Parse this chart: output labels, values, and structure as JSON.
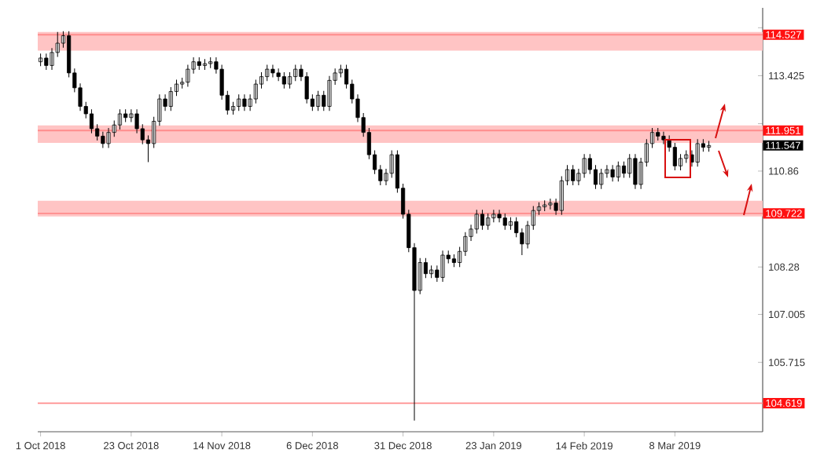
{
  "chart_data": {
    "type": "candlestick",
    "categories": [
      "1 Oct 2018",
      null,
      null,
      null,
      null,
      null,
      null,
      null,
      null,
      null,
      null,
      null,
      null,
      null,
      null,
      null,
      "23 Oct 2018",
      null,
      null,
      null,
      null,
      null,
      null,
      null,
      null,
      null,
      null,
      null,
      null,
      null,
      null,
      null,
      "14 Nov 2018",
      null,
      null,
      null,
      null,
      null,
      null,
      null,
      null,
      null,
      null,
      null,
      null,
      null,
      null,
      null,
      "6 Dec 2018",
      null,
      null,
      null,
      null,
      null,
      null,
      null,
      null,
      null,
      null,
      null,
      null,
      null,
      null,
      null,
      "31 Dec 2018",
      null,
      null,
      null,
      null,
      null,
      null,
      null,
      null,
      null,
      null,
      null,
      null,
      null,
      null,
      null,
      "23 Jan 2019",
      null,
      null,
      null,
      null,
      null,
      null,
      null,
      null,
      null,
      null,
      null,
      null,
      null,
      null,
      null,
      "14 Feb 2019",
      null,
      null,
      null,
      null,
      null,
      null,
      null,
      null,
      null,
      null,
      null,
      null,
      null,
      null,
      null,
      "8 Mar 2019",
      null,
      null,
      null,
      null,
      null,
      null,
      null,
      null,
      null,
      null,
      null,
      null,
      null,
      null,
      null
    ],
    "ohlc": [
      [
        113.8,
        114.02,
        113.68,
        113.9
      ],
      [
        113.9,
        114.02,
        113.58,
        113.7
      ],
      [
        113.7,
        114.17,
        113.58,
        114.05
      ],
      [
        114.05,
        114.6,
        113.93,
        114.3
      ],
      [
        114.3,
        114.62,
        114.18,
        114.5
      ],
      [
        114.5,
        114.62,
        113.38,
        113.5
      ],
      [
        113.5,
        113.62,
        112.98,
        113.1
      ],
      [
        113.1,
        113.22,
        112.48,
        112.6
      ],
      [
        112.6,
        112.72,
        112.28,
        112.4
      ],
      [
        112.4,
        112.52,
        111.88,
        112.0
      ],
      [
        112.0,
        112.12,
        111.68,
        111.8
      ],
      [
        111.8,
        111.92,
        111.48,
        111.6
      ],
      [
        111.6,
        112.02,
        111.48,
        111.9
      ],
      [
        111.9,
        112.22,
        111.78,
        112.1
      ],
      [
        112.1,
        112.52,
        111.98,
        112.4
      ],
      [
        112.4,
        112.52,
        112.18,
        112.3
      ],
      [
        112.3,
        112.52,
        112.18,
        112.4
      ],
      [
        112.4,
        112.52,
        111.88,
        112.0
      ],
      [
        112.0,
        112.12,
        111.58,
        111.7
      ],
      [
        111.7,
        111.82,
        111.1,
        111.6
      ],
      [
        111.6,
        112.32,
        111.48,
        112.2
      ],
      [
        112.2,
        112.92,
        112.08,
        112.8
      ],
      [
        112.8,
        112.92,
        112.48,
        112.6
      ],
      [
        112.6,
        113.12,
        112.48,
        113.0
      ],
      [
        113.0,
        113.32,
        112.88,
        113.2
      ],
      [
        113.2,
        113.37,
        113.08,
        113.25
      ],
      [
        113.25,
        113.72,
        113.13,
        113.6
      ],
      [
        113.6,
        113.92,
        113.48,
        113.8
      ],
      [
        113.8,
        113.92,
        113.58,
        113.7
      ],
      [
        113.7,
        113.87,
        113.58,
        113.75
      ],
      [
        113.75,
        113.92,
        113.63,
        113.8
      ],
      [
        113.8,
        113.92,
        113.48,
        113.6
      ],
      [
        113.6,
        113.72,
        112.78,
        112.9
      ],
      [
        112.9,
        113.02,
        112.38,
        112.5
      ],
      [
        112.5,
        112.72,
        112.38,
        112.6
      ],
      [
        112.6,
        112.92,
        112.48,
        112.8
      ],
      [
        112.8,
        112.92,
        112.48,
        112.6
      ],
      [
        112.6,
        112.92,
        112.48,
        112.8
      ],
      [
        112.8,
        113.32,
        112.68,
        113.2
      ],
      [
        113.2,
        113.52,
        113.08,
        113.4
      ],
      [
        113.4,
        113.72,
        113.28,
        113.6
      ],
      [
        113.6,
        113.72,
        113.38,
        113.5
      ],
      [
        113.5,
        113.62,
        113.28,
        113.4
      ],
      [
        113.4,
        113.52,
        113.08,
        113.2
      ],
      [
        113.2,
        113.52,
        113.08,
        113.4
      ],
      [
        113.4,
        113.72,
        113.28,
        113.6
      ],
      [
        113.6,
        113.72,
        113.28,
        113.4
      ],
      [
        113.4,
        113.52,
        112.68,
        112.8
      ],
      [
        112.8,
        112.92,
        112.48,
        112.6
      ],
      [
        112.6,
        113.02,
        112.48,
        112.9
      ],
      [
        112.9,
        113.02,
        112.48,
        112.6
      ],
      [
        112.6,
        113.42,
        112.48,
        113.3
      ],
      [
        113.3,
        113.62,
        113.18,
        113.5
      ],
      [
        113.5,
        113.72,
        113.38,
        113.6
      ],
      [
        113.6,
        113.72,
        113.08,
        113.2
      ],
      [
        113.2,
        113.32,
        112.68,
        112.8
      ],
      [
        112.8,
        112.92,
        112.18,
        112.3
      ],
      [
        112.3,
        112.42,
        111.78,
        111.9
      ],
      [
        111.9,
        112.02,
        111.18,
        111.3
      ],
      [
        111.3,
        111.42,
        110.78,
        110.9
      ],
      [
        110.9,
        111.02,
        110.48,
        110.6
      ],
      [
        110.6,
        110.92,
        110.48,
        110.8
      ],
      [
        110.8,
        111.42,
        110.68,
        111.3
      ],
      [
        111.3,
        111.42,
        110.28,
        110.4
      ],
      [
        110.4,
        110.52,
        109.58,
        109.7
      ],
      [
        109.7,
        109.82,
        108.68,
        108.8
      ],
      [
        108.8,
        108.92,
        104.15,
        107.65
      ],
      [
        107.65,
        108.52,
        107.55,
        108.4
      ],
      [
        108.4,
        108.52,
        107.98,
        108.1
      ],
      [
        108.1,
        108.32,
        107.98,
        108.2
      ],
      [
        108.2,
        108.32,
        107.88,
        108.0
      ],
      [
        108.0,
        108.72,
        107.88,
        108.6
      ],
      [
        108.6,
        108.72,
        108.38,
        108.5
      ],
      [
        108.5,
        108.62,
        108.28,
        108.4
      ],
      [
        108.4,
        108.82,
        108.28,
        108.7
      ],
      [
        108.7,
        109.22,
        108.58,
        109.1
      ],
      [
        109.1,
        109.42,
        108.98,
        109.3
      ],
      [
        109.3,
        109.82,
        109.18,
        109.7
      ],
      [
        109.7,
        109.82,
        109.28,
        109.4
      ],
      [
        109.4,
        109.72,
        109.28,
        109.6
      ],
      [
        109.6,
        109.82,
        109.48,
        109.7
      ],
      [
        109.7,
        109.82,
        109.48,
        109.6
      ],
      [
        109.6,
        109.72,
        109.28,
        109.4
      ],
      [
        109.4,
        109.62,
        109.28,
        109.5
      ],
      [
        109.5,
        109.62,
        109.08,
        109.2
      ],
      [
        109.2,
        109.32,
        108.6,
        108.9
      ],
      [
        108.9,
        109.52,
        108.78,
        109.4
      ],
      [
        109.4,
        109.92,
        109.28,
        109.8
      ],
      [
        109.8,
        110.02,
        109.68,
        109.9
      ],
      [
        109.9,
        110.07,
        109.78,
        109.95
      ],
      [
        109.95,
        110.12,
        109.83,
        110.0
      ],
      [
        110.0,
        110.12,
        109.68,
        109.8
      ],
      [
        109.8,
        110.72,
        109.68,
        110.6
      ],
      [
        110.6,
        111.02,
        110.48,
        110.9
      ],
      [
        110.9,
        111.02,
        110.48,
        110.6
      ],
      [
        110.6,
        110.92,
        110.48,
        110.8
      ],
      [
        110.8,
        111.32,
        110.68,
        111.2
      ],
      [
        111.2,
        111.32,
        110.78,
        110.9
      ],
      [
        110.9,
        111.02,
        110.38,
        110.5
      ],
      [
        110.5,
        110.92,
        110.38,
        110.8
      ],
      [
        110.8,
        111.02,
        110.68,
        110.9
      ],
      [
        110.9,
        111.02,
        110.58,
        110.7
      ],
      [
        110.7,
        111.12,
        110.58,
        111.0
      ],
      [
        111.0,
        111.12,
        110.68,
        110.8
      ],
      [
        110.8,
        111.32,
        110.68,
        111.2
      ],
      [
        111.2,
        111.32,
        110.38,
        110.5
      ],
      [
        110.5,
        111.22,
        110.38,
        111.1
      ],
      [
        111.1,
        111.72,
        110.98,
        111.6
      ],
      [
        111.6,
        112.02,
        111.48,
        111.9
      ],
      [
        111.9,
        112.02,
        111.68,
        111.8
      ],
      [
        111.8,
        111.92,
        111.58,
        111.7
      ],
      [
        111.7,
        111.82,
        111.38,
        111.5
      ],
      [
        111.5,
        111.62,
        110.88,
        111.0
      ],
      [
        111.0,
        111.32,
        110.88,
        111.2
      ],
      [
        111.2,
        111.42,
        111.08,
        111.3
      ],
      [
        111.3,
        111.42,
        110.98,
        111.1
      ],
      [
        111.1,
        111.72,
        110.98,
        111.6
      ],
      [
        111.6,
        111.72,
        111.38,
        111.5
      ],
      [
        111.5,
        111.67,
        111.38,
        111.55
      ],
      null,
      null,
      null,
      null,
      null,
      null,
      null,
      null,
      null
    ],
    "ylim": [
      103.85,
      115.25
    ],
    "yticks": [
      105.715,
      107.005,
      108.28,
      110.86,
      {
        "value": 112.135,
        "label": null
      },
      113.425,
      {
        "value": 114.715,
        "label": null
      }
    ],
    "bands": [
      {
        "axis": "y",
        "from": 114.1,
        "to": 114.6,
        "color": "#ffc4c4"
      },
      {
        "axis": "y",
        "from": 111.62,
        "to": 112.09,
        "color": "#ffc4c4"
      },
      {
        "axis": "y",
        "from": 109.64,
        "to": 110.06,
        "color": "#ffc4c4"
      }
    ],
    "ref_lines": [
      {
        "axis": "y",
        "value": 114.527,
        "label": "114.527",
        "color": "#ff8c8c"
      },
      {
        "axis": "y",
        "value": 111.951,
        "label": "111.951",
        "color": "#ff8c8c"
      },
      {
        "axis": "y",
        "value": 109.722,
        "label": "109.722",
        "color": "#ff8c8c"
      },
      {
        "axis": "y",
        "value": 104.619,
        "label": "104.619",
        "color": "#ff8c8c"
      }
    ],
    "annotations": [
      "111.547"
    ]
  }
}
